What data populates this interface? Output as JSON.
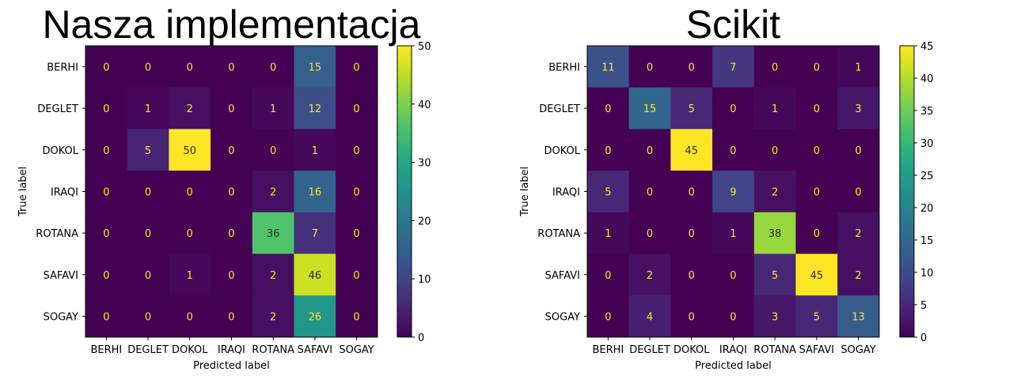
{
  "chart_data": [
    {
      "type": "heatmap",
      "title": "Nasza implementacja",
      "xlabel": "Predicted label",
      "ylabel": "True label",
      "x_categories": [
        "BERHI",
        "DEGLET",
        "DOKOL",
        "IRAQI",
        "ROTANA",
        "SAFAVI",
        "SOGAY"
      ],
      "y_categories": [
        "BERHI",
        "DEGLET",
        "DOKOL",
        "IRAQI",
        "ROTANA",
        "SAFAVI",
        "SOGAY"
      ],
      "values": [
        [
          0,
          0,
          0,
          0,
          0,
          15,
          0
        ],
        [
          0,
          1,
          2,
          0,
          1,
          12,
          0
        ],
        [
          0,
          5,
          50,
          0,
          0,
          1,
          0
        ],
        [
          0,
          0,
          0,
          0,
          2,
          16,
          0
        ],
        [
          0,
          0,
          0,
          0,
          36,
          7,
          0
        ],
        [
          0,
          0,
          1,
          0,
          2,
          46,
          0
        ],
        [
          0,
          0,
          0,
          0,
          2,
          26,
          0
        ]
      ],
      "colormap": "viridis",
      "colorbar_range": [
        0,
        50
      ],
      "colorbar_ticks": [
        0,
        10,
        20,
        30,
        40,
        50
      ]
    },
    {
      "type": "heatmap",
      "title": "Scikit",
      "xlabel": "Predicted label",
      "ylabel": "True label",
      "x_categories": [
        "BERHI",
        "DEGLET",
        "DOKOL",
        "IRAQI",
        "ROTANA",
        "SAFAVI",
        "SOGAY"
      ],
      "y_categories": [
        "BERHI",
        "DEGLET",
        "DOKOL",
        "IRAQI",
        "ROTANA",
        "SAFAVI",
        "SOGAY"
      ],
      "values": [
        [
          11,
          0,
          0,
          7,
          0,
          0,
          1
        ],
        [
          0,
          15,
          5,
          0,
          1,
          0,
          3
        ],
        [
          0,
          0,
          45,
          0,
          0,
          0,
          0
        ],
        [
          5,
          0,
          0,
          9,
          2,
          0,
          0
        ],
        [
          1,
          0,
          0,
          1,
          38,
          0,
          2
        ],
        [
          0,
          2,
          0,
          0,
          5,
          45,
          2
        ],
        [
          0,
          4,
          0,
          0,
          3,
          5,
          13
        ]
      ],
      "colormap": "viridis",
      "colorbar_range": [
        0,
        45
      ],
      "colorbar_ticks": [
        0,
        5,
        10,
        15,
        20,
        25,
        30,
        35,
        40,
        45
      ]
    }
  ]
}
